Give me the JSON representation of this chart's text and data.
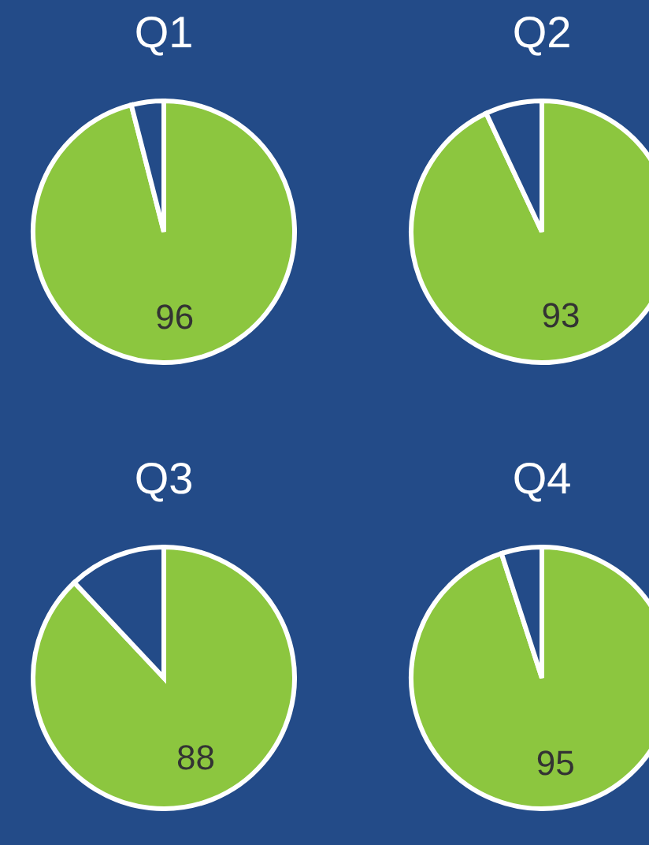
{
  "chart_data": [
    {
      "type": "pie",
      "title": "Q1",
      "categories": [
        null,
        null
      ],
      "values": [
        96,
        4
      ],
      "colors": [
        "#8cc63f",
        "#234b88"
      ],
      "value_labels": [
        "96",
        null
      ]
    },
    {
      "type": "pie",
      "title": "Q2",
      "categories": [
        null,
        null
      ],
      "values": [
        93,
        7
      ],
      "colors": [
        "#8cc63f",
        "#234b88"
      ],
      "value_labels": [
        "93",
        null
      ]
    },
    {
      "type": "pie",
      "title": "Q3",
      "categories": [
        null,
        null
      ],
      "values": [
        88,
        12
      ],
      "colors": [
        "#8cc63f",
        "#234b88"
      ],
      "value_labels": [
        "88",
        null
      ]
    },
    {
      "type": "pie",
      "title": "Q4",
      "categories": [
        null,
        null
      ],
      "values": [
        95,
        5
      ],
      "colors": [
        "#8cc63f",
        "#234b88"
      ],
      "value_labels": [
        "95",
        null
      ]
    }
  ]
}
